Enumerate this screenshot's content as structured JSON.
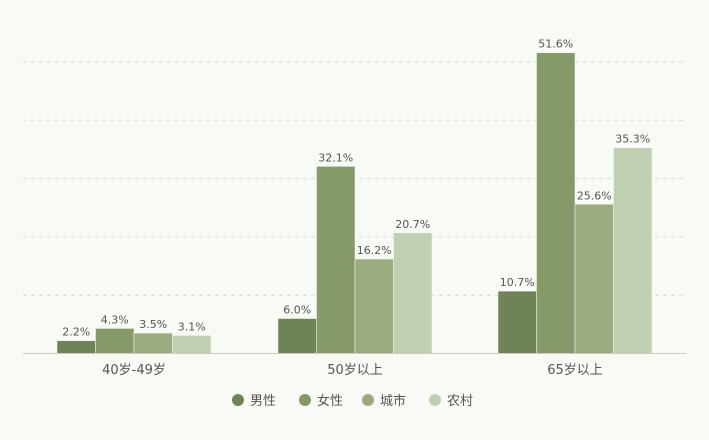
{
  "chart_data": {
    "type": "bar",
    "categories": [
      "40岁-49岁",
      "50岁以上",
      "65岁以上"
    ],
    "series": [
      {
        "name": "男性",
        "values": [
          2.2,
          6.0,
          10.7
        ],
        "labels": [
          "2.2%",
          "6.0%",
          "10.7%"
        ],
        "color": "#6e8455"
      },
      {
        "name": "女性",
        "values": [
          4.3,
          32.1,
          51.6
        ],
        "labels": [
          "4.3%",
          "32.1%",
          "51.6%"
        ],
        "color": "#869968"
      },
      {
        "name": "城市",
        "values": [
          3.5,
          16.2,
          25.6
        ],
        "labels": [
          "3.5%",
          "16.2%",
          "25.6%"
        ],
        "color": "#9cab7e"
      },
      {
        "name": "农村",
        "values": [
          3.1,
          20.7,
          35.3
        ],
        "labels": [
          "3.1%",
          "20.7%",
          "35.3%"
        ],
        "color": "#c0cfb1"
      }
    ],
    "ylim": [
      0,
      50
    ],
    "grid": true,
    "legend_position": "bottom",
    "title": "",
    "xlabel": "",
    "ylabel": ""
  }
}
